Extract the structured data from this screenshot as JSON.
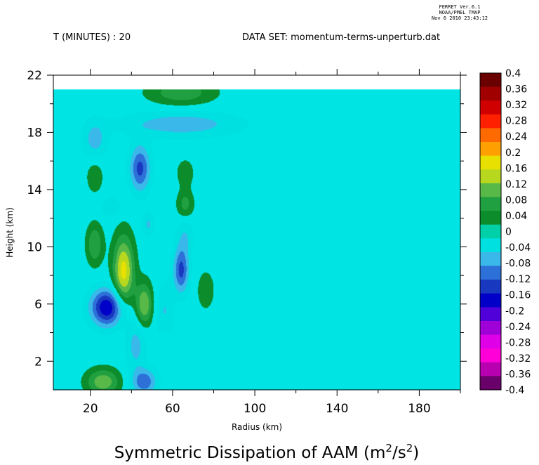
{
  "header": {
    "ferret_lines": [
      "FERRET Ver.6.1",
      "NOAA/PMEL TMAP",
      "Nov  6 2010 23:43:12"
    ],
    "time_label": "T (MINUTES) : 20",
    "dataset_label": "DATA SET: momentum-terms-unperturb.dat"
  },
  "chart_data": {
    "type": "heatmap",
    "title": "Symmetric Dissipation of AAM (m",
    "title_units_sup": [
      "2",
      "2"
    ],
    "title_units_mid": "/s",
    "title_units_end": ")",
    "xlabel": "Radius (km)",
    "ylabel": "Height (km)",
    "xlim": [
      2,
      200
    ],
    "ylim": [
      0,
      22
    ],
    "data_top": 21,
    "x_ticks": [
      "20",
      "60",
      "100",
      "140",
      "180"
    ],
    "x_tick_values": [
      20,
      60,
      100,
      140,
      180
    ],
    "y_ticks": [
      "2",
      "6",
      "10",
      "14",
      "18",
      "22"
    ],
    "y_tick_values": [
      2,
      6,
      10,
      14,
      18,
      22
    ],
    "colorbar": {
      "labels": [
        "0.4",
        "0.36",
        "0.32",
        "0.28",
        "0.24",
        "0.2",
        "0.16",
        "0.12",
        "0.08",
        "0.04",
        "0",
        "-0.04",
        "-0.08",
        "-0.12",
        "-0.16",
        "-0.2",
        "-0.24",
        "-0.28",
        "-0.32",
        "-0.36",
        "-0.4"
      ],
      "colors": [
        "#6b0000",
        "#a00000",
        "#d00000",
        "#ff2000",
        "#ff6a00",
        "#ffa000",
        "#e8e000",
        "#b8d820",
        "#58b848",
        "#20a040",
        "#0c8c2a",
        "#00d0a8",
        "#00e0e0",
        "#3ab8ea",
        "#2c70d8",
        "#1838c0",
        "#0000c8",
        "#5000d8",
        "#a000d8",
        "#e000e8",
        "#ff00d8",
        "#b800b0",
        "#6a006a"
      ]
    },
    "features": [
      {
        "x": 28,
        "y": 5.8,
        "sx": 8,
        "sy": 1.3,
        "v": -0.2,
        "rot": 0
      },
      {
        "x": 36,
        "y": 8.3,
        "sx": 5,
        "sy": 2.4,
        "v": 0.18,
        "rot": 0.55
      },
      {
        "x": 46,
        "y": 6.0,
        "sx": 4,
        "sy": 1.5,
        "v": 0.13,
        "rot": 0.5
      },
      {
        "x": 56,
        "y": 3.5,
        "sx": 3,
        "sy": 1.6,
        "v": 0.07,
        "rot": 0.3
      },
      {
        "x": 22,
        "y": 10.2,
        "sx": 4,
        "sy": 1.4,
        "v": 0.09,
        "rot": 0.6
      },
      {
        "x": 26,
        "y": 0.6,
        "sx": 8,
        "sy": 0.9,
        "v": 0.12,
        "rot": 0
      },
      {
        "x": 46,
        "y": 0.6,
        "sx": 6,
        "sy": 0.9,
        "v": -0.12,
        "rot": 0
      },
      {
        "x": 64,
        "y": 8.4,
        "sx": 3.8,
        "sy": 1.6,
        "v": -0.14,
        "rot": -0.3
      },
      {
        "x": 66,
        "y": 10.8,
        "sx": 4,
        "sy": 1.3,
        "v": -0.05,
        "rot": 0
      },
      {
        "x": 48,
        "y": 11.6,
        "sx": 3,
        "sy": 0.8,
        "v": -0.06,
        "rot": 0
      },
      {
        "x": 56,
        "y": 4.6,
        "sx": 4,
        "sy": 2.5,
        "v": -0.08,
        "rot": 0
      },
      {
        "x": 42,
        "y": 3.2,
        "sx": 5,
        "sy": 1.8,
        "v": -0.07,
        "rot": 0
      },
      {
        "x": 76,
        "y": 7.0,
        "sx": 4,
        "sy": 1.3,
        "v": 0.05,
        "rot": 0.5
      },
      {
        "x": 44,
        "y": 15.5,
        "sx": 5,
        "sy": 1.6,
        "v": -0.14,
        "rot": 0
      },
      {
        "x": 66,
        "y": 13.0,
        "sx": 4,
        "sy": 1.0,
        "v": 0.07,
        "rot": 0
      },
      {
        "x": 66,
        "y": 15.2,
        "sx": 4,
        "sy": 0.9,
        "v": 0.05,
        "rot": 0
      },
      {
        "x": 22,
        "y": 15.0,
        "sx": 4,
        "sy": 1.2,
        "v": 0.05,
        "rot": 0
      },
      {
        "x": 64,
        "y": 18.6,
        "sx": 28,
        "sy": 0.9,
        "v": -0.08,
        "rot": 0
      },
      {
        "x": 22,
        "y": 17.5,
        "sx": 6,
        "sy": 1.4,
        "v": -0.07,
        "rot": 0
      },
      {
        "x": 64,
        "y": 20.8,
        "sx": 16,
        "sy": 0.9,
        "v": 0.08,
        "rot": 0
      },
      {
        "x": 30,
        "y": 12.8,
        "sx": 5,
        "sy": 0.7,
        "v": -0.05,
        "rot": 0
      }
    ]
  }
}
